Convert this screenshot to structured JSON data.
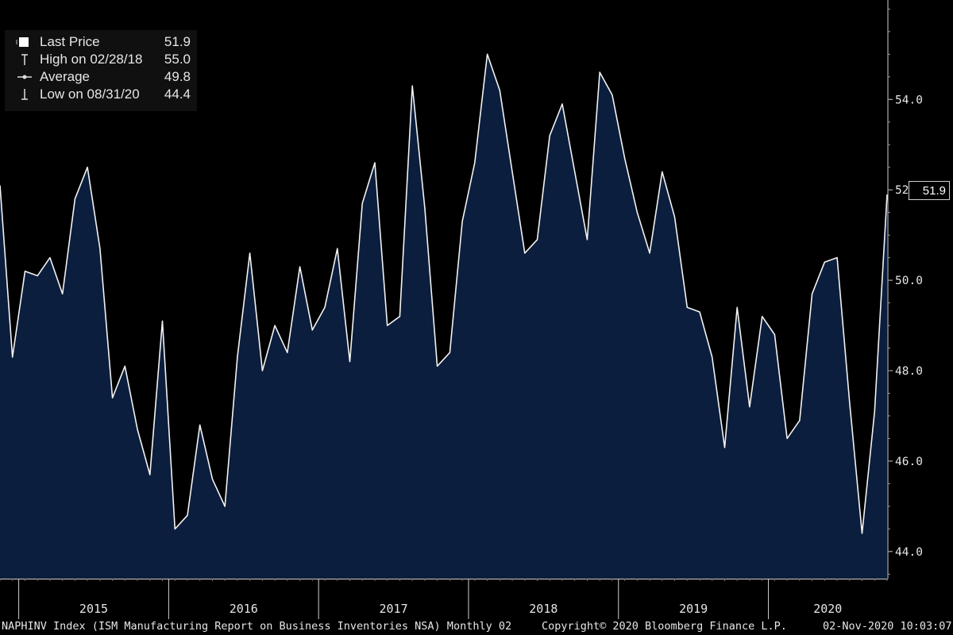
{
  "legend": {
    "last_label": "Last Price",
    "last_value": "51.9",
    "high_label": "High on 02/28/18",
    "high_value": "55.0",
    "avg_label": "Average",
    "avg_value": "49.8",
    "low_label": "Low on 08/31/20",
    "low_value": "44.4"
  },
  "footer": {
    "left": "NAPHINV Index (ISM Manufacturing Report on Business Inventories NSA)  Monthly 02",
    "center": "Copyright© 2020 Bloomberg Finance L.P.",
    "right": "02-Nov-2020 10:03:07"
  },
  "colors": {
    "fill": "#0c1e3d",
    "line": "#f2f2f2",
    "background": "#000000",
    "text": "#e6e6e6"
  },
  "chart_data": {
    "type": "area",
    "x": [
      "2014-11",
      "2014-12",
      "2015-01",
      "2015-02",
      "2015-03",
      "2015-04",
      "2015-05",
      "2015-06",
      "2015-07",
      "2015-08",
      "2015-09",
      "2015-10",
      "2015-11",
      "2015-12",
      "2016-01",
      "2016-02",
      "2016-03",
      "2016-04",
      "2016-05",
      "2016-06",
      "2016-07",
      "2016-08",
      "2016-09",
      "2016-10",
      "2016-11",
      "2016-12",
      "2017-01",
      "2017-02",
      "2017-03",
      "2017-04",
      "2017-05",
      "2017-06",
      "2017-07",
      "2017-08",
      "2017-09",
      "2017-10",
      "2017-11",
      "2017-12",
      "2018-01",
      "2018-02",
      "2018-03",
      "2018-04",
      "2018-05",
      "2018-06",
      "2018-07",
      "2018-08",
      "2018-09",
      "2018-10",
      "2018-11",
      "2018-12",
      "2019-01",
      "2019-02",
      "2019-03",
      "2019-04",
      "2019-05",
      "2019-06",
      "2019-07",
      "2019-08",
      "2019-09",
      "2019-10",
      "2019-11",
      "2019-12",
      "2020-01",
      "2020-02",
      "2020-03",
      "2020-04",
      "2020-05",
      "2020-06",
      "2020-07",
      "2020-08",
      "2020-09",
      "2020-10"
    ],
    "values": [
      52.1,
      48.3,
      50.2,
      50.1,
      50.5,
      49.7,
      51.8,
      52.5,
      50.7,
      47.4,
      48.1,
      46.7,
      45.7,
      49.1,
      44.5,
      44.8,
      46.8,
      45.6,
      45.0,
      48.3,
      50.6,
      48.0,
      49.0,
      48.4,
      50.3,
      48.9,
      49.4,
      50.7,
      48.2,
      51.7,
      52.6,
      49.0,
      49.2,
      54.3,
      51.6,
      48.1,
      48.4,
      51.3,
      52.6,
      55.0,
      54.2,
      52.4,
      50.6,
      50.9,
      53.2,
      53.9,
      52.4,
      50.9,
      54.6,
      54.1,
      52.7,
      51.5,
      50.6,
      52.4,
      51.4,
      49.4,
      49.3,
      48.3,
      46.3,
      49.4,
      47.2,
      49.2,
      48.8,
      46.5,
      46.9,
      49.7,
      50.4,
      50.5,
      47.3,
      44.4,
      47.1,
      51.9
    ],
    "ylim": [
      43.4,
      56.2
    ],
    "yticks": [
      "44.0",
      "46.0",
      "48.0",
      "50.0",
      "52.0",
      "54.0"
    ],
    "xticks": [
      "2015",
      "2016",
      "2017",
      "2018",
      "2019",
      "2020"
    ],
    "last_value_label": "51.9",
    "y_axis_position": "right",
    "grid": false
  }
}
